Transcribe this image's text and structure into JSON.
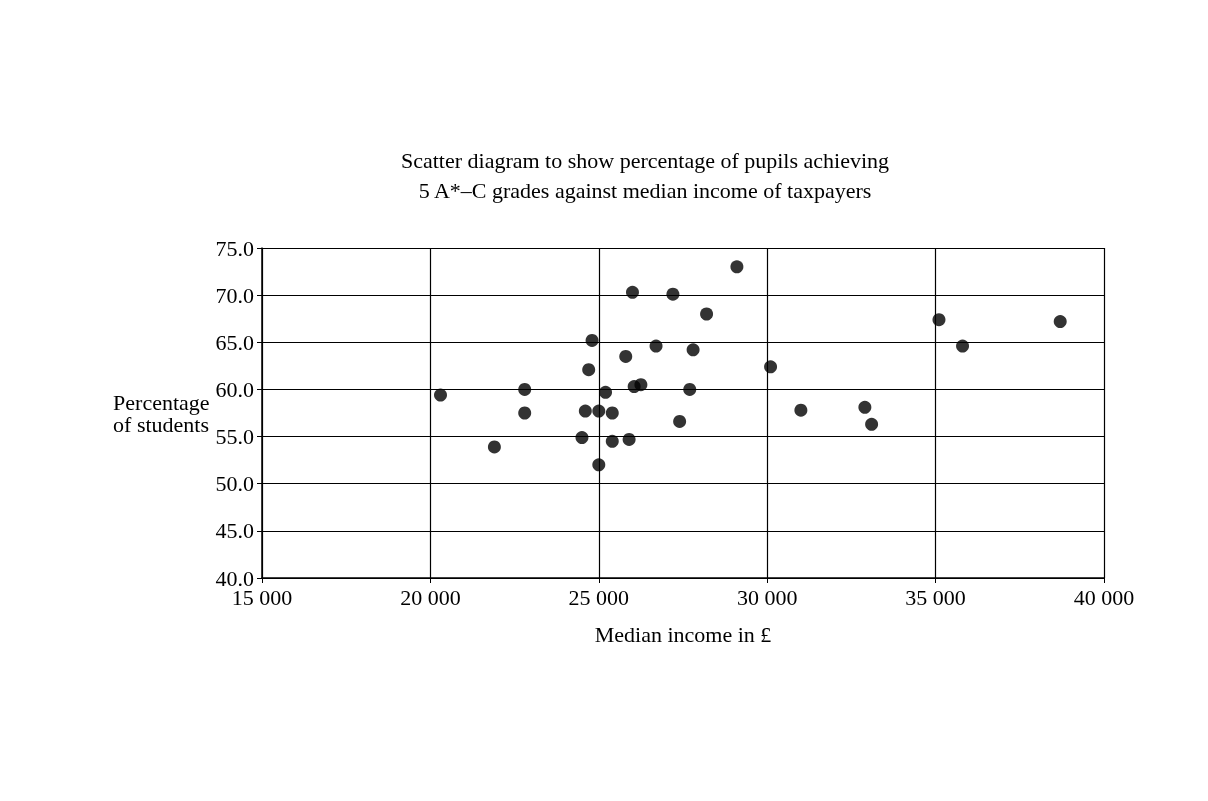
{
  "chart_data": {
    "type": "scatter",
    "title": "Scatter diagram to show percentage of pupils achieving\n5 A*–C grades against median income of taxpayers",
    "xlabel": "Median income in £",
    "ylabel": "Percentage\nof students",
    "x": [
      20300,
      22800,
      22800,
      21900,
      24800,
      24700,
      24600,
      25000,
      25400,
      24500,
      25400,
      25000,
      25200,
      26000,
      25800,
      25900,
      26050,
      26250,
      26700,
      27200,
      27400,
      27700,
      27800,
      28200,
      29100,
      30100,
      31000,
      32900,
      33100,
      35100,
      35800,
      38700
    ],
    "values": [
      59.4,
      60.0,
      57.5,
      53.9,
      65.2,
      62.1,
      57.7,
      57.7,
      57.5,
      54.9,
      54.5,
      52.0,
      59.7,
      70.3,
      63.5,
      54.7,
      60.3,
      60.5,
      64.6,
      70.1,
      56.6,
      60.0,
      64.2,
      68.0,
      73.0,
      62.4,
      57.8,
      58.1,
      56.3,
      67.4,
      64.6,
      67.2
    ],
    "color": "#000000",
    "marker": "circle",
    "grid": true,
    "xlim": [
      15000,
      40000
    ],
    "xticks": [
      {
        "value": 15000,
        "label": "15 000"
      },
      {
        "value": 20000,
        "label": "20 000"
      },
      {
        "value": 25000,
        "label": "25 000"
      },
      {
        "value": 30000,
        "label": "30 000"
      },
      {
        "value": 35000,
        "label": "35 000"
      },
      {
        "value": 40000,
        "label": "40 000"
      }
    ],
    "ylim": [
      40,
      75
    ],
    "yticks": [
      {
        "value": 40,
        "label": "40.0"
      },
      {
        "value": 45,
        "label": "45.0"
      },
      {
        "value": 50,
        "label": "50.0"
      },
      {
        "value": 55,
        "label": "55.0"
      },
      {
        "value": 60,
        "label": "60.0"
      },
      {
        "value": 65,
        "label": "65.0"
      },
      {
        "value": 70,
        "label": "70.0"
      },
      {
        "value": 75,
        "label": "75.0"
      }
    ]
  }
}
